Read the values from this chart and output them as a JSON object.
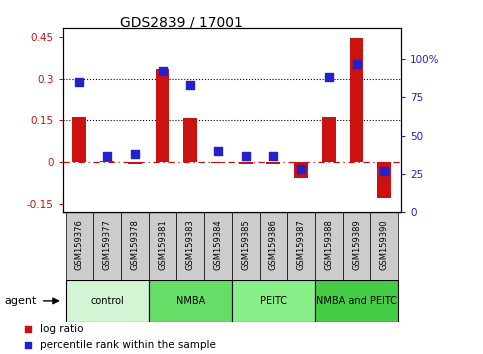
{
  "title": "GDS2839 / 17001",
  "samples": [
    "GSM159376",
    "GSM159377",
    "GSM159378",
    "GSM159381",
    "GSM159383",
    "GSM159384",
    "GSM159385",
    "GSM159386",
    "GSM159387",
    "GSM159388",
    "GSM159389",
    "GSM159390"
  ],
  "log_ratio": [
    0.163,
    0.005,
    -0.008,
    0.335,
    0.16,
    -0.002,
    -0.005,
    -0.007,
    -0.055,
    0.163,
    0.445,
    -0.13
  ],
  "percentile_rank": [
    85,
    37,
    38,
    92,
    83,
    40,
    37,
    37,
    28,
    88,
    97,
    27
  ],
  "groups": [
    {
      "label": "control",
      "start": 0,
      "end": 3,
      "color": "#d4f5d4"
    },
    {
      "label": "NMBA",
      "start": 3,
      "end": 6,
      "color": "#66dd66"
    },
    {
      "label": "PEITC",
      "start": 6,
      "end": 9,
      "color": "#88ee88"
    },
    {
      "label": "NMBA and PEITC",
      "start": 9,
      "end": 12,
      "color": "#44cc44"
    }
  ],
  "ylim_left": [
    -0.18,
    0.48
  ],
  "ylim_right": [
    0,
    120
  ],
  "yticks_left": [
    -0.15,
    0.0,
    0.15,
    0.3,
    0.45
  ],
  "yticks_right": [
    0,
    25,
    50,
    75,
    100
  ],
  "hlines": [
    0.15,
    0.3
  ],
  "bar_color": "#cc1111",
  "dot_color": "#2222cc",
  "bar_width": 0.5,
  "dot_size": 35,
  "legend_items": [
    "log ratio",
    "percentile rank within the sample"
  ],
  "agent_label": "agent",
  "bg_color": "#ffffff",
  "sample_box_color": "#cccccc",
  "title_fontsize": 10,
  "axis_fontsize": 7.5,
  "label_fontsize": 6,
  "group_fontsize": 7
}
